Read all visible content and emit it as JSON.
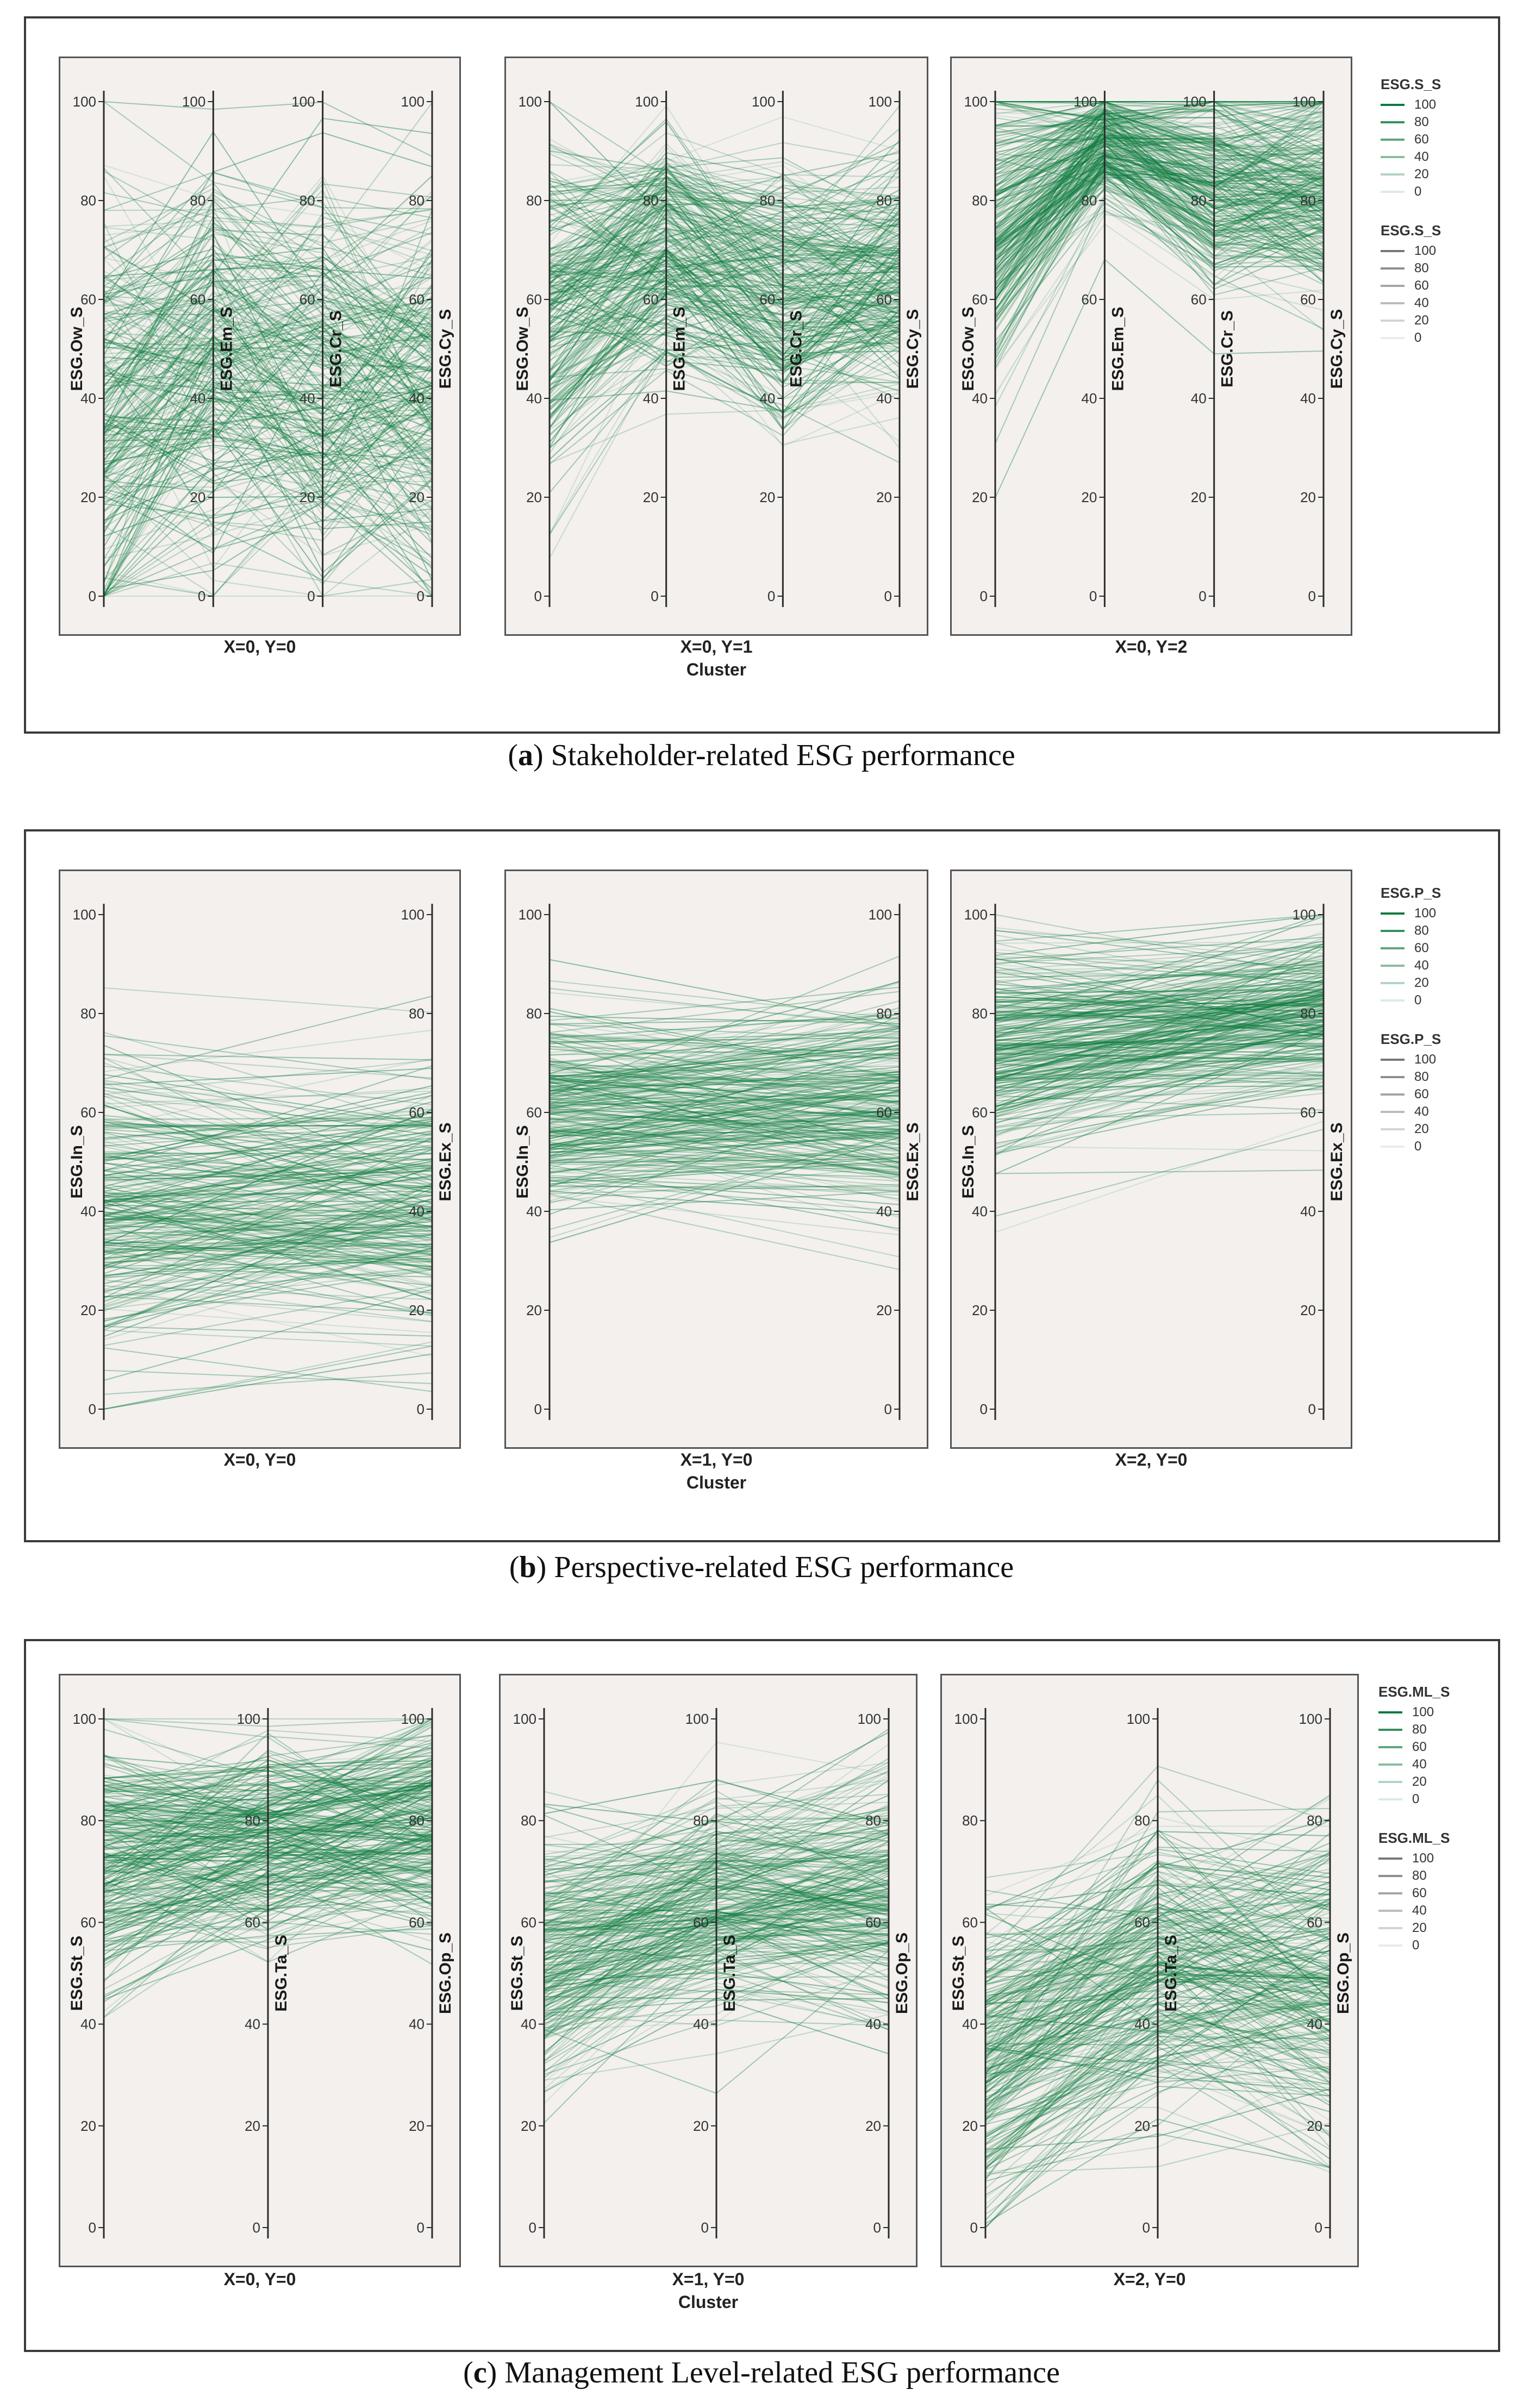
{
  "colors": {
    "line": "#0a7a3c",
    "axis": "#333333",
    "panel_bg": "#f3f0ee"
  },
  "chart_data": [
    {
      "type": "parallel-coordinates",
      "caption": {
        "letter": "a",
        "text": "Stakeholder-related ESG performance"
      },
      "group_label": "Cluster",
      "axes": [
        "ESG.Ow_S",
        "ESG.Em_S",
        "ESG.Cr_S",
        "ESG.Cy_S"
      ],
      "ylim": [
        0,
        100
      ],
      "ticks": [
        "0",
        "20",
        "40",
        "60",
        "80",
        "100"
      ],
      "legend": [
        {
          "title": "ESG.S_S",
          "items": [
            "100",
            "80",
            "60",
            "40",
            "20",
            "0"
          ],
          "kind": "green"
        },
        {
          "title": "ESG.S_S",
          "items": [
            "100",
            "80",
            "60",
            "40",
            "20",
            "0"
          ],
          "kind": "gray"
        }
      ],
      "panels": [
        {
          "label": "X=0, Y=0",
          "means": [
            38,
            48,
            44,
            42
          ],
          "spread": [
            26,
            24,
            22,
            22
          ]
        },
        {
          "label": "X=0, Y=1",
          "means": [
            58,
            70,
            62,
            64
          ],
          "spread": [
            20,
            14,
            16,
            14
          ]
        },
        {
          "label": "X=0, Y=2",
          "means": [
            75,
            92,
            84,
            82
          ],
          "spread": [
            18,
            7,
            11,
            12
          ]
        }
      ]
    },
    {
      "type": "parallel-coordinates",
      "caption": {
        "letter": "b",
        "text": "Perspective-related ESG performance"
      },
      "group_label": "Cluster",
      "axes": [
        "ESG.In_S",
        "ESG.Ex_S"
      ],
      "ylim": [
        0,
        100
      ],
      "ticks": [
        "0",
        "20",
        "40",
        "60",
        "80",
        "100"
      ],
      "legend": [
        {
          "title": "ESG.P_S",
          "items": [
            "100",
            "80",
            "60",
            "40",
            "20",
            "0"
          ],
          "kind": "green"
        },
        {
          "title": "ESG.P_S",
          "items": [
            "100",
            "80",
            "60",
            "40",
            "20",
            "0"
          ],
          "kind": "gray"
        }
      ],
      "panels": [
        {
          "label": "X=0, Y=0",
          "means": [
            40,
            42
          ],
          "spread": [
            18,
            16
          ]
        },
        {
          "label": "X=1, Y=0",
          "means": [
            60,
            61
          ],
          "spread": [
            12,
            12
          ]
        },
        {
          "label": "X=2, Y=0",
          "means": [
            72,
            80
          ],
          "spread": [
            13,
            10
          ]
        }
      ]
    },
    {
      "type": "parallel-coordinates",
      "caption": {
        "letter": "c",
        "text": "Management Level-related ESG performance"
      },
      "group_label": "Cluster",
      "axes": [
        "ESG.St_S",
        "ESG.Ta_S",
        "ESG.Op_S"
      ],
      "ylim": [
        0,
        100
      ],
      "ticks": [
        "0",
        "20",
        "40",
        "60",
        "80",
        "100"
      ],
      "legend": [
        {
          "title": "ESG.ML_S",
          "items": [
            "100",
            "80",
            "60",
            "40",
            "20",
            "0"
          ],
          "kind": "green"
        },
        {
          "title": "ESG.ML_S",
          "items": [
            "100",
            "80",
            "60",
            "40",
            "20",
            "0"
          ],
          "kind": "gray"
        }
      ],
      "panels": [
        {
          "label": "X=0, Y=0",
          "means": [
            72,
            76,
            80
          ],
          "spread": [
            14,
            11,
            12
          ]
        },
        {
          "label": "X=1, Y=0",
          "means": [
            52,
            64,
            66
          ],
          "spread": [
            15,
            12,
            14
          ]
        },
        {
          "label": "X=2, Y=0",
          "means": [
            32,
            50,
            46
          ],
          "spread": [
            18,
            16,
            18
          ]
        }
      ]
    }
  ]
}
